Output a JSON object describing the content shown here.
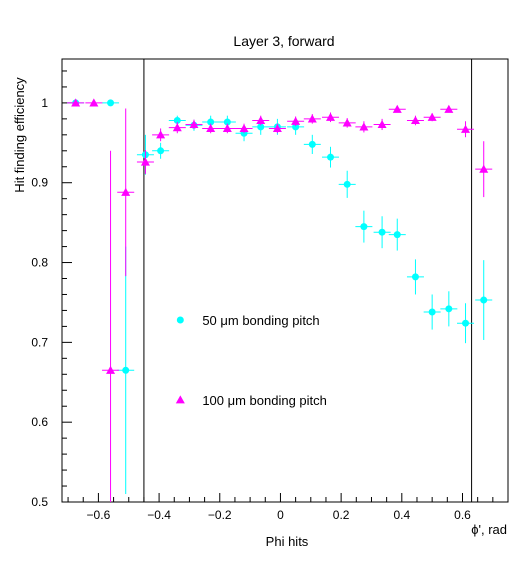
{
  "chart_data": {
    "type": "scatter",
    "title": "Layer 3, forward",
    "ylabel": "Hit finding efficiency",
    "xlabel": "Phi hits",
    "axis_unit_label": "ϕ', rad",
    "xlim": [
      -0.72,
      0.75
    ],
    "ylim": [
      0.5,
      1.055
    ],
    "x_ticks": [
      -0.6,
      -0.4,
      -0.2,
      0,
      0.2,
      0.4,
      0.6
    ],
    "y_ticks": [
      0.5,
      0.6,
      0.7,
      0.8,
      0.9,
      1
    ],
    "x_tick_labels": [
      "−0.6",
      "−0.4",
      "−0.2",
      "0",
      "0.2",
      "0.4",
      "0.6"
    ],
    "y_tick_labels": [
      "0.5",
      "0.6",
      "0.7",
      "0.8",
      "0.9",
      "1"
    ],
    "vertical_lines": [
      -0.45,
      0.63
    ],
    "x_bin_half_width": 0.028,
    "grid": false,
    "series": [
      {
        "name": "50 μm bonding pitch",
        "marker": "circle",
        "color": "#00ffff",
        "x": [
          -0.675,
          -0.56,
          -0.51,
          -0.445,
          -0.395,
          -0.34,
          -0.285,
          -0.23,
          -0.175,
          -0.12,
          -0.065,
          -0.01,
          0.05,
          0.105,
          0.165,
          0.22,
          0.275,
          0.335,
          0.385,
          0.445,
          0.5,
          0.555,
          0.61,
          0.67
        ],
        "y": [
          1.0,
          1.0,
          0.665,
          0.935,
          0.94,
          0.978,
          0.972,
          0.976,
          0.976,
          0.962,
          0.97,
          0.97,
          0.97,
          0.948,
          0.932,
          0.898,
          0.845,
          0.838,
          0.835,
          0.782,
          0.738,
          0.742,
          0.724,
          0.753
        ],
        "err": [
          0,
          0,
          0.155,
          0.025,
          0.01,
          0.006,
          0.007,
          0.008,
          0.008,
          0.01,
          0.01,
          0.01,
          0.01,
          0.012,
          0.013,
          0.017,
          0.02,
          0.02,
          0.02,
          0.022,
          0.022,
          0.022,
          0.025,
          0.05
        ]
      },
      {
        "name": "100 μm bonding pitch",
        "marker": "triangle",
        "color": "#ff00ff",
        "x": [
          -0.675,
          -0.615,
          -0.56,
          -0.51,
          -0.445,
          -0.395,
          -0.34,
          -0.285,
          -0.23,
          -0.175,
          -0.12,
          -0.065,
          -0.01,
          0.05,
          0.105,
          0.165,
          0.22,
          0.275,
          0.335,
          0.385,
          0.445,
          0.5,
          0.555,
          0.61,
          0.67
        ],
        "y": [
          1.0,
          1.0,
          0.665,
          0.888,
          0.926,
          0.96,
          0.969,
          0.973,
          0.968,
          0.968,
          0.968,
          0.978,
          0.968,
          0.977,
          0.98,
          0.982,
          0.975,
          0.97,
          0.973,
          0.992,
          0.978,
          0.982,
          0.992,
          0.967,
          0.917
        ],
        "err": [
          0,
          0,
          0.275,
          0.105,
          0.015,
          0.008,
          0.007,
          0.006,
          0.006,
          0.006,
          0.006,
          0.006,
          0.006,
          0.006,
          0.006,
          0.006,
          0.006,
          0.007,
          0.007,
          0.004,
          0.006,
          0.005,
          0.004,
          0.01,
          0.035
        ]
      }
    ],
    "legend": {
      "placement": "center-left",
      "entries": [
        "50 μm bonding pitch",
        "100 μm bonding pitch"
      ]
    }
  }
}
